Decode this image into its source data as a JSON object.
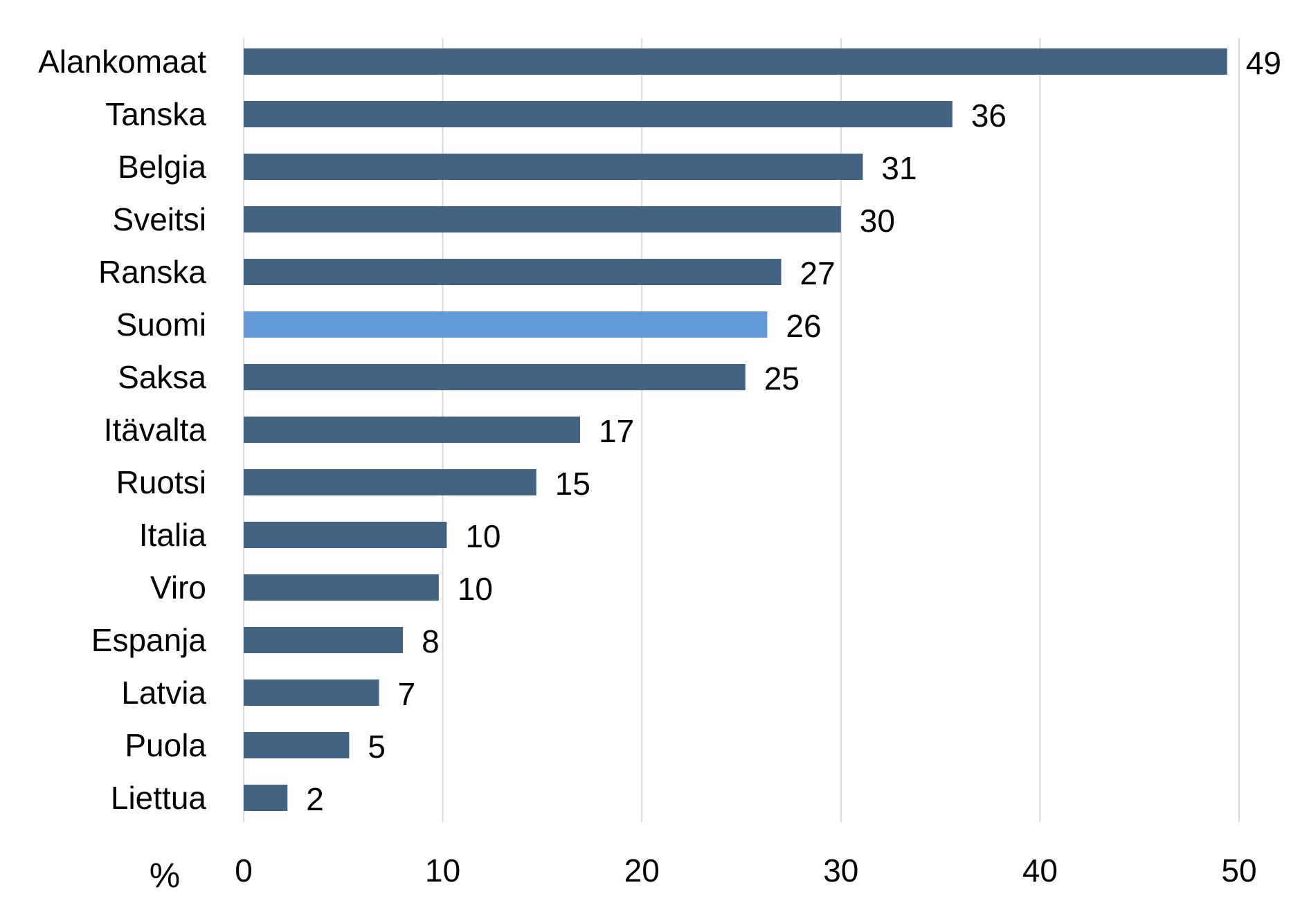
{
  "chart_data": {
    "type": "bar",
    "orientation": "horizontal",
    "categories": [
      "Alankomaat",
      "Tanska",
      "Belgia",
      "Sveitsi",
      "Ranska",
      "Suomi",
      "Saksa",
      "Itävalta",
      "Ruotsi",
      "Italia",
      "Viro",
      "Espanja",
      "Latvia",
      "Puola",
      "Liettua"
    ],
    "values": [
      49.4,
      35.6,
      31.1,
      30.0,
      27.0,
      26.3,
      25.2,
      16.9,
      14.7,
      10.2,
      9.8,
      8.0,
      6.8,
      5.3,
      2.2
    ],
    "value_labels": [
      "49",
      "36",
      "31",
      "30",
      "27",
      "26",
      "25",
      "17",
      "15",
      "10",
      "10",
      "8",
      "7",
      "5",
      "2"
    ],
    "highlight": "Suomi",
    "xlim": [
      0,
      50
    ],
    "xticks": [
      0,
      10,
      20,
      30,
      40,
      50
    ],
    "xtick_labels": [
      "0",
      "10",
      "20",
      "30",
      "40",
      "50"
    ],
    "unit": "%",
    "grid": "vertical",
    "colors": {
      "bar": "#426482",
      "highlight": "#6399d7",
      "grid": "#d9d9d9"
    }
  }
}
